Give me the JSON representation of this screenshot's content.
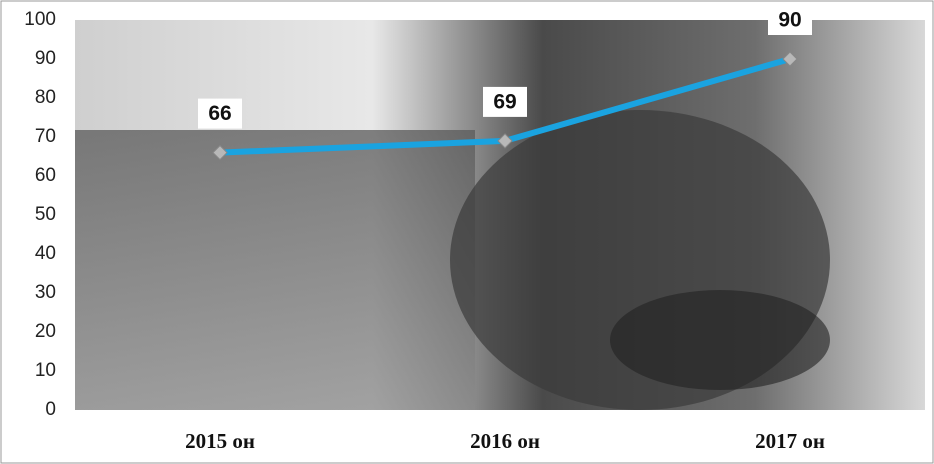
{
  "chart_data": {
    "type": "line",
    "categories": [
      "2015 он",
      "2016 он",
      "2017 он"
    ],
    "values": [
      66,
      69,
      90
    ],
    "color": "#1aa3e0",
    "marker_color": "#b8b8b8",
    "ylim": [
      0,
      100
    ],
    "yticks": [
      0,
      10,
      20,
      30,
      40,
      50,
      60,
      70,
      80,
      90,
      100
    ],
    "grid": false
  }
}
